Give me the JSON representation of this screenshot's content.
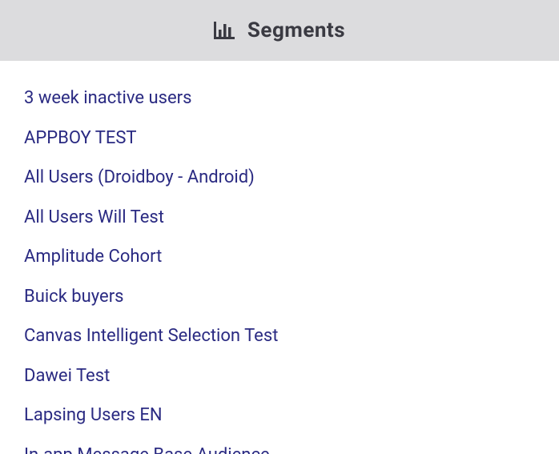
{
  "header": {
    "title": "Segments",
    "icon_name": "bar-chart-icon",
    "icon_color": "#3a3a42",
    "background_color": "#dcdcde",
    "title_color": "#3a3a42",
    "title_fontsize": 26
  },
  "segments": {
    "link_color": "#2a2a82",
    "fontsize": 22,
    "items": [
      {
        "label": "3 week inactive users"
      },
      {
        "label": "APPBOY TEST"
      },
      {
        "label": "All Users (Droidboy - Android)"
      },
      {
        "label": "All Users Will Test"
      },
      {
        "label": "Amplitude Cohort"
      },
      {
        "label": "Buick buyers"
      },
      {
        "label": "Canvas Intelligent Selection Test"
      },
      {
        "label": "Dawei Test"
      },
      {
        "label": "Lapsing Users EN"
      },
      {
        "label": "In-app Message Base Audience"
      }
    ]
  }
}
